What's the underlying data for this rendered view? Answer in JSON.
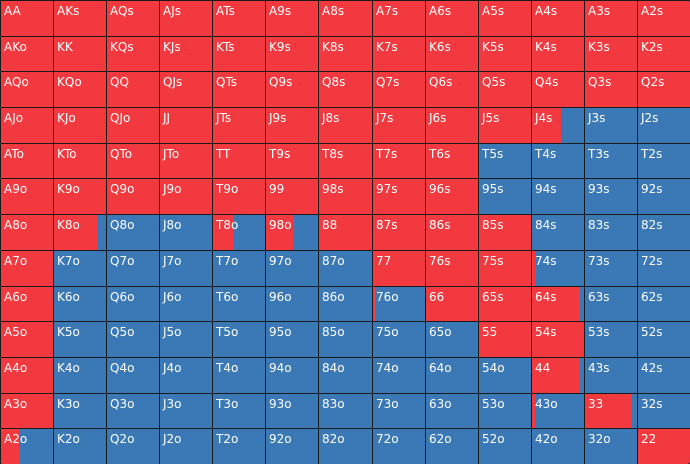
{
  "colors": {
    "raise": "#f1393f",
    "fold": "#3a78b6",
    "gridline": "#1a1a1a",
    "text": "#ffffff"
  },
  "rows": [
    {
      "hands": [
        "AA",
        "AKs",
        "AQs",
        "AJs",
        "ATs",
        "A9s",
        "A8s",
        "A7s",
        "A6s",
        "A5s",
        "A4s",
        "A3s",
        "A2s"
      ],
      "fill": [
        1,
        1,
        1,
        1,
        1,
        1,
        1,
        1,
        1,
        1,
        1,
        1,
        1
      ]
    },
    {
      "hands": [
        "AKo",
        "KK",
        "KQs",
        "KJs",
        "KTs",
        "K9s",
        "K8s",
        "K7s",
        "K6s",
        "K5s",
        "K4s",
        "K3s",
        "K2s"
      ],
      "fill": [
        1,
        1,
        1,
        1,
        1,
        1,
        1,
        1,
        1,
        1,
        1,
        1,
        1
      ]
    },
    {
      "hands": [
        "AQo",
        "KQo",
        "QQ",
        "QJs",
        "QTs",
        "Q9s",
        "Q8s",
        "Q7s",
        "Q6s",
        "Q5s",
        "Q4s",
        "Q3s",
        "Q2s"
      ],
      "fill": [
        1,
        1,
        1,
        1,
        1,
        1,
        1,
        1,
        1,
        1,
        1,
        1,
        1
      ]
    },
    {
      "hands": [
        "AJo",
        "KJo",
        "QJo",
        "JJ",
        "JTs",
        "J9s",
        "J8s",
        "J7s",
        "J6s",
        "J5s",
        "J4s",
        "J3s",
        "J2s"
      ],
      "fill": [
        1,
        1,
        1,
        1,
        1,
        1,
        1,
        1,
        1,
        1,
        0.55,
        0,
        0
      ]
    },
    {
      "hands": [
        "ATo",
        "KTo",
        "QTo",
        "JTo",
        "TT",
        "T9s",
        "T8s",
        "T7s",
        "T6s",
        "T5s",
        "T4s",
        "T3s",
        "T2s"
      ],
      "fill": [
        1,
        1,
        1,
        1,
        1,
        1,
        1,
        1,
        1,
        0,
        0,
        0,
        0
      ]
    },
    {
      "hands": [
        "A9o",
        "K9o",
        "Q9o",
        "J9o",
        "T9o",
        "99",
        "98s",
        "97s",
        "96s",
        "95s",
        "94s",
        "93s",
        "92s"
      ],
      "fill": [
        1,
        1,
        1,
        1,
        1,
        1,
        1,
        1,
        1,
        0,
        0,
        0,
        0
      ]
    },
    {
      "hands": [
        "A8o",
        "K8o",
        "Q8o",
        "J8o",
        "T8o",
        "98o",
        "88",
        "87s",
        "86s",
        "85s",
        "84s",
        "83s",
        "82s"
      ],
      "fill": [
        1,
        0.85,
        0,
        0,
        0.4,
        0.52,
        1,
        1,
        1,
        1,
        0,
        0,
        0
      ]
    },
    {
      "hands": [
        "A7o",
        "K7o",
        "Q7o",
        "J7o",
        "T7o",
        "97o",
        "87o",
        "77",
        "76s",
        "75s",
        "74s",
        "73s",
        "72s"
      ],
      "fill": [
        1,
        0,
        0,
        0,
        0,
        0,
        0,
        1,
        1,
        1,
        0.05,
        0,
        0
      ]
    },
    {
      "hands": [
        "A6o",
        "K6o",
        "Q6o",
        "J6o",
        "T6o",
        "96o",
        "86o",
        "76o",
        "66",
        "65s",
        "64s",
        "63s",
        "62s"
      ],
      "fill": [
        1,
        0,
        0,
        0,
        0,
        0,
        0,
        0.05,
        1,
        1,
        0.92,
        0,
        0
      ]
    },
    {
      "hands": [
        "A5o",
        "K5o",
        "Q5o",
        "J5o",
        "T5o",
        "95o",
        "85o",
        "75o",
        "65o",
        "55",
        "54s",
        "53s",
        "52s"
      ],
      "fill": [
        1,
        0,
        0,
        0,
        0,
        0,
        0,
        0,
        0,
        1,
        1,
        0,
        0
      ]
    },
    {
      "hands": [
        "A4o",
        "K4o",
        "Q4o",
        "J4o",
        "T4o",
        "94o",
        "84o",
        "74o",
        "64o",
        "54o",
        "44",
        "43s",
        "42s"
      ],
      "fill": [
        1,
        0,
        0,
        0,
        0,
        0,
        0,
        0,
        0,
        0,
        0.9,
        0,
        0
      ]
    },
    {
      "hands": [
        "A3o",
        "K3o",
        "Q3o",
        "J3o",
        "T3o",
        "93o",
        "83o",
        "73o",
        "63o",
        "53o",
        "43o",
        "33",
        "32s"
      ],
      "fill": [
        1,
        0,
        0,
        0,
        0,
        0,
        0,
        0,
        0,
        0,
        0.05,
        0.9,
        0
      ]
    },
    {
      "hands": [
        "A2o",
        "K2o",
        "Q2o",
        "J2o",
        "T2o",
        "92o",
        "82o",
        "72o",
        "62o",
        "52o",
        "42o",
        "32o",
        "22"
      ],
      "fill": [
        0.35,
        0,
        0,
        0,
        0,
        0,
        0,
        0,
        0,
        0,
        0,
        0,
        1
      ]
    }
  ]
}
